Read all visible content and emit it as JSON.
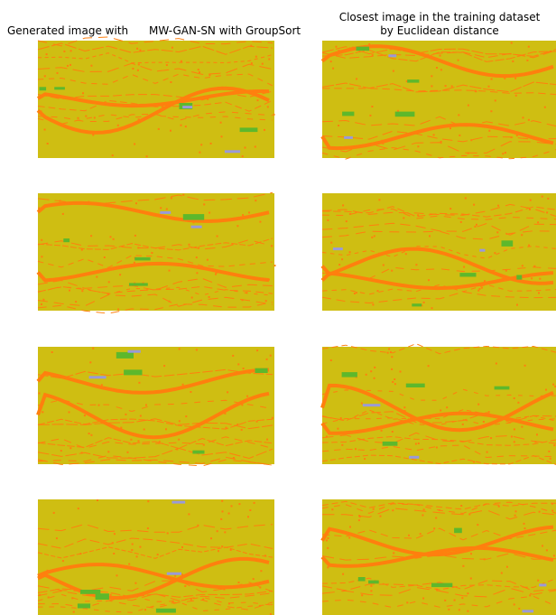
{
  "left_title": {
    "part1": "Generated image with",
    "part2": "MW-GAN-SN with GroupSort"
  },
  "right_title": {
    "line1": "Closest image in the training dataset",
    "line2": "by Euclidean distance"
  }
}
